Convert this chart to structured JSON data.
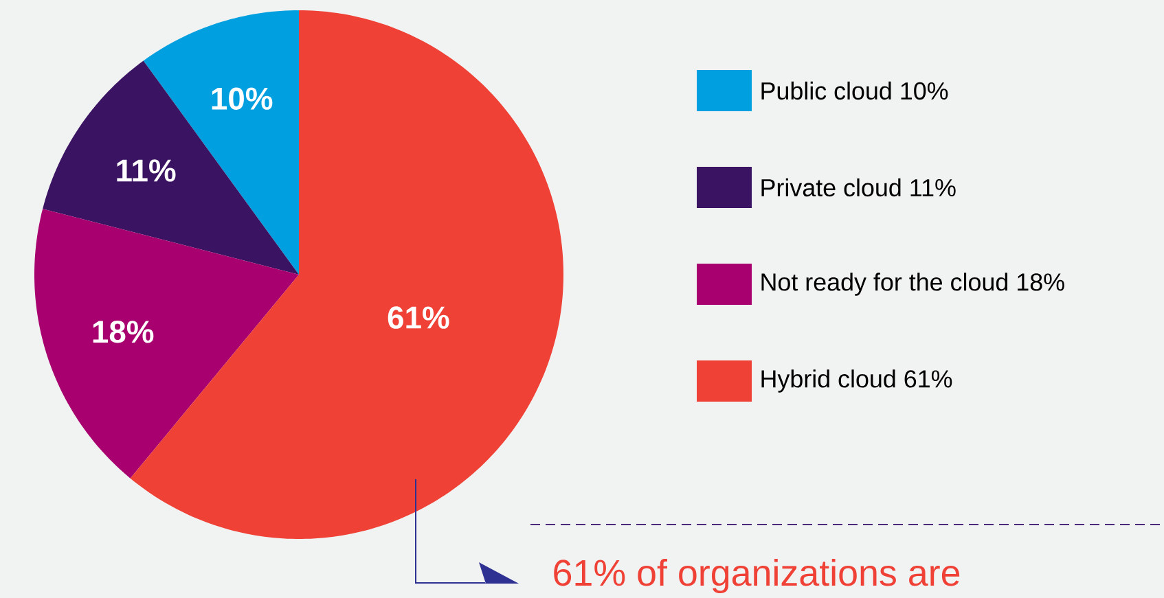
{
  "chart_data": {
    "type": "pie",
    "categories": [
      "Public cloud 10%",
      "Private cloud 11%",
      "Not ready for the cloud 18%",
      "Hybrid cloud 61%"
    ],
    "values": [
      10,
      11,
      18,
      61
    ],
    "colors": [
      "#009fdf",
      "#3b1363",
      "#a8006e",
      "#ef4136"
    ],
    "value_labels": [
      "10%",
      "11%",
      "18%",
      "61%"
    ],
    "legend": "right",
    "annotations": [
      "61% of organizations are"
    ]
  }
}
